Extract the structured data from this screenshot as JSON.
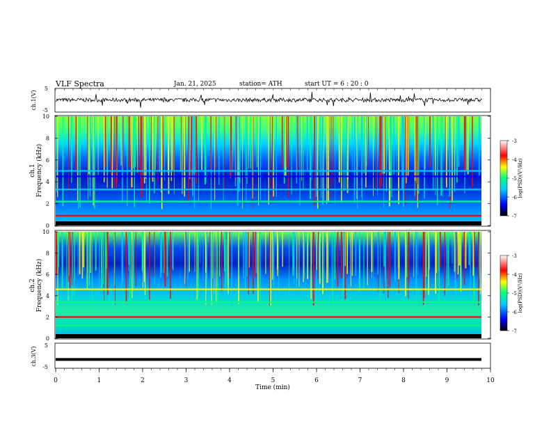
{
  "header": {
    "title": "VLF  Spectra",
    "date": "Jan. 21, 2025",
    "station": "station= ATH",
    "start": "start  UT  =   6  : 20 : 0"
  },
  "chart_data": [
    {
      "id": "ch1-waveform",
      "type": "line",
      "ylabel": "ch.1(V)",
      "ylim": [
        -5,
        5
      ],
      "yticks": [
        "5",
        "-5"
      ],
      "description_level": 0.1,
      "x": "time (min) 0-9.8"
    },
    {
      "id": "ch1-spectrogram",
      "type": "heatmap",
      "ylabel_line1": "ch.1",
      "ylabel_line2": "Frequency  (kHz)",
      "ylim": [
        0,
        10
      ],
      "yticks": [
        "0",
        "2",
        "4",
        "6",
        "8",
        "10"
      ],
      "x_range_min": [
        0,
        9.8
      ],
      "colorbar": {
        "label": "log(PSD)(V²/Hz)",
        "ticks": [
          "-3",
          "-4",
          "-5",
          "-6",
          "-7"
        ],
        "range": [
          -7,
          -3
        ]
      },
      "bands_khz": [
        {
          "f": 0.9,
          "level": -3.6
        },
        {
          "f": 2.2,
          "level": -4.6
        },
        {
          "f": 3.3,
          "level": -5.4
        },
        {
          "f": 4.5,
          "level": -5.8
        },
        {
          "f": 5.0,
          "level": -5.5
        }
      ]
    },
    {
      "id": "ch2-spectrogram",
      "type": "heatmap",
      "ylabel_line1": "ch.2",
      "ylabel_line2": "Frequency  (kHz)",
      "ylim": [
        0,
        10
      ],
      "yticks": [
        "0",
        "2",
        "4",
        "6",
        "8",
        "10"
      ],
      "x_range_min": [
        0,
        9.8
      ],
      "colorbar": {
        "label": "log(PSD)(V²/Hz)",
        "ticks": [
          "-3",
          "-4",
          "-5",
          "-6",
          "-7"
        ],
        "range": [
          -7,
          -3
        ]
      },
      "bands_khz": [
        {
          "f": 2.0,
          "level": -3.7
        },
        {
          "f": 3.4,
          "level": -4.5
        },
        {
          "f": 4.6,
          "level": -4.2
        },
        {
          "f": 1.2,
          "level": -4.9
        }
      ]
    },
    {
      "id": "ch3-waveform",
      "type": "line",
      "ylabel": "ch.3(V)",
      "ylim": [
        -5,
        5
      ],
      "yticks": [
        "5",
        "-5"
      ],
      "level": -1.5
    }
  ],
  "xaxis": {
    "label": "Time  (min)",
    "ticks": [
      "0",
      "1",
      "2",
      "3",
      "4",
      "5",
      "6",
      "7",
      "8",
      "9",
      "10"
    ],
    "range": [
      0,
      10
    ]
  },
  "colors": {
    "frame": "#000000",
    "colormap": [
      "#000000",
      "#0000ff",
      "#00c0ff",
      "#00ff80",
      "#ffff00",
      "#ff0000",
      "#ffffff"
    ]
  }
}
